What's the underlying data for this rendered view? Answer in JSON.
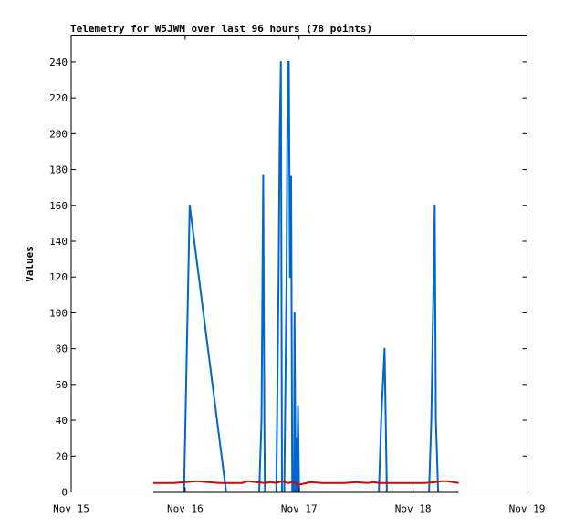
{
  "chart_data": {
    "type": "line",
    "title": "Telemetry for W5JWM over last 96 hours (78 points)",
    "ylabel": "Values",
    "xlabel": "",
    "xlim": [
      "Nov 15",
      "Nov 19"
    ],
    "ylim": [
      0,
      255
    ],
    "y_ticks": [
      0,
      20,
      40,
      60,
      80,
      100,
      120,
      140,
      160,
      180,
      200,
      220,
      240
    ],
    "x_ticks": [
      {
        "label": "Nov 15",
        "day": 0
      },
      {
        "label": "Nov 16",
        "day": 1
      },
      {
        "label": "Nov 17",
        "day": 2
      },
      {
        "label": "Nov 18",
        "day": 3
      },
      {
        "label": "Nov 19",
        "day": 4
      }
    ],
    "grid": false,
    "series": [
      {
        "color": "#0066cc",
        "x": [
          0.93,
          0.99,
          1.04,
          1.36,
          1.65,
          1.67,
          1.685,
          1.695,
          1.7,
          1.8,
          1.82,
          1.83,
          1.84,
          1.85,
          1.87,
          1.89,
          1.9,
          1.91,
          1.92,
          1.93,
          1.94,
          1.955,
          1.96,
          1.97,
          1.975,
          1.985,
          1.99,
          2.0,
          2.015,
          2.03,
          2.05,
          2.065,
          2.08,
          2.09,
          2.1,
          2.11,
          2.12,
          2.13,
          2.14,
          2.15,
          2.16,
          2.17,
          2.19,
          2.22,
          2.26,
          2.3,
          2.36,
          2.42,
          2.5,
          2.58,
          2.64,
          2.68,
          2.7,
          2.72,
          2.75,
          2.76,
          2.77,
          2.8,
          2.84,
          2.88,
          2.92,
          2.96,
          3.0,
          3.05,
          3.1,
          3.14,
          3.16,
          3.18,
          3.19,
          3.2,
          3.22,
          3.25,
          3.28,
          3.3,
          3.32,
          3.34,
          3.36,
          3.38
        ],
        "y": [
          0,
          0,
          160,
          0,
          0,
          40,
          177,
          40,
          0,
          0,
          120,
          200,
          240,
          0,
          0,
          120,
          240,
          240,
          120,
          176,
          0,
          0,
          100,
          0,
          30,
          0,
          48,
          0,
          0,
          0,
          0,
          0,
          0,
          0,
          0,
          0,
          0,
          0,
          0,
          0,
          0,
          0,
          0,
          0,
          0,
          0,
          0,
          0,
          0,
          0,
          0,
          0,
          0,
          40,
          80,
          40,
          0,
          0,
          0,
          0,
          0,
          0,
          0,
          0,
          0,
          0,
          40,
          120,
          160,
          40,
          0,
          0,
          0,
          0,
          0,
          0,
          0,
          0
        ]
      },
      {
        "color": "#dd0000",
        "x": [
          0.72,
          0.9,
          1.0,
          1.1,
          1.2,
          1.3,
          1.4,
          1.5,
          1.55,
          1.62,
          1.7,
          1.75,
          1.8,
          1.85,
          1.9,
          1.95,
          2.0,
          2.1,
          2.2,
          2.3,
          2.4,
          2.5,
          2.6,
          2.65,
          2.7,
          2.8,
          2.9,
          3.0,
          3.1,
          3.2,
          3.25,
          3.3,
          3.35,
          3.4
        ],
        "y": [
          5,
          5,
          5.5,
          6,
          5.5,
          5,
          5,
          5,
          6,
          5.5,
          5,
          5.5,
          5,
          6,
          5,
          5.5,
          4,
          5.5,
          5,
          5,
          5,
          5.5,
          5,
          5.5,
          5,
          5,
          5,
          5,
          5,
          5.5,
          6,
          6,
          5.5,
          5
        ]
      },
      {
        "color": "#000000",
        "x": [
          0.72,
          3.4
        ],
        "y": [
          0,
          0
        ]
      }
    ]
  }
}
